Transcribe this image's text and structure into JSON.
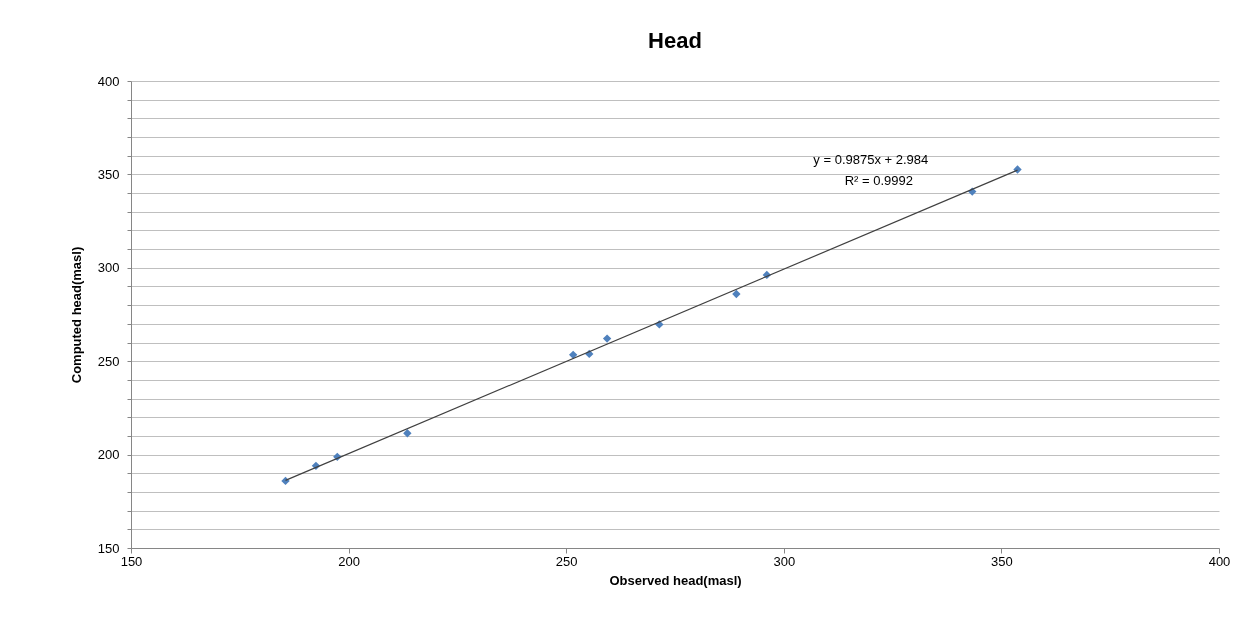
{
  "chart_data": {
    "type": "scatter",
    "title": "Head",
    "xlabel": "Observed head(masl)",
    "ylabel": "Computed head(masl)",
    "x": [
      185.5,
      192.5,
      197.4,
      213.5,
      251.6,
      255.3,
      259.4,
      271.4,
      289.1,
      296.1,
      343.3,
      353.7
    ],
    "series": [
      {
        "color": "#4f81bd",
        "marker": "diamond",
        "values": [
          185.9,
          194.0,
          198.8,
          211.4,
          253.4,
          253.9,
          262.1,
          269.7,
          286.0,
          296.2,
          340.8,
          352.6
        ]
      },
      {
        "type": "line",
        "color": "#404040",
        "x": [
          185.5,
          353.7
        ],
        "values": [
          186.2,
          352.3
        ]
      }
    ],
    "xlim": [
      150,
      400
    ],
    "xticks": [
      150,
      200,
      250,
      300,
      350,
      400
    ],
    "ylim": [
      150,
      400
    ],
    "yticks": [
      150,
      {
        "value": 160,
        "label": null
      },
      {
        "value": 170,
        "label": null
      },
      {
        "value": 180,
        "label": null
      },
      {
        "value": 190,
        "label": null
      },
      200,
      {
        "value": 210,
        "label": null
      },
      {
        "value": 220,
        "label": null
      },
      {
        "value": 230,
        "label": null
      },
      {
        "value": 240,
        "label": null
      },
      250,
      {
        "value": 260,
        "label": null
      },
      {
        "value": 270,
        "label": null
      },
      {
        "value": 280,
        "label": null
      },
      {
        "value": 290,
        "label": null
      },
      300,
      {
        "value": 310,
        "label": null
      },
      {
        "value": 320,
        "label": null
      },
      {
        "value": 330,
        "label": null
      },
      {
        "value": 340,
        "label": null
      },
      350,
      {
        "value": 360,
        "label": null
      },
      {
        "value": 370,
        "label": null
      },
      {
        "value": 380,
        "label": null
      },
      {
        "value": 390,
        "label": null
      },
      400
    ],
    "grid": "y",
    "line_style": "solid",
    "annotations": [
      "y = 0.9875x + 2.984",
      "R² = 0.9992"
    ]
  }
}
